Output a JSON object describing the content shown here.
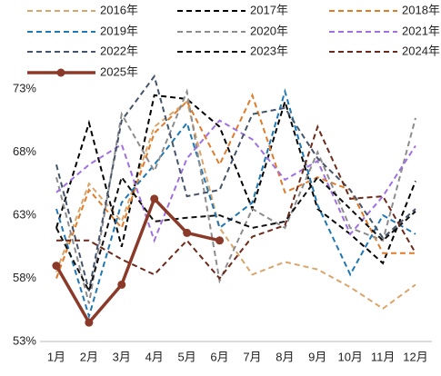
{
  "chart_data": {
    "type": "line",
    "categories": [
      "1月",
      "2月",
      "3月",
      "4月",
      "5月",
      "6月",
      "7月",
      "8月",
      "9月",
      "10月",
      "11月",
      "12月"
    ],
    "series": [
      {
        "name": "2016年",
        "color": "#d9a56b",
        "dashed": true,
        "values": [
          58.5,
          65.5,
          62.5,
          70,
          72,
          62,
          58.3,
          59.3,
          58.7,
          57.3,
          55.6,
          57.5
        ]
      },
      {
        "name": "2017年",
        "color": "#000000",
        "dashed": true,
        "values": [
          62,
          70.3,
          60.5,
          72.5,
          72.2,
          70,
          63.5,
          72,
          63.5,
          61.5,
          59.2,
          65.7
        ]
      },
      {
        "name": "2018年",
        "color": "#e07b2a",
        "dashed": true,
        "values": [
          58,
          65,
          62,
          69.5,
          72,
          67,
          72.5,
          64.8,
          66,
          65,
          60,
          60
        ]
      },
      {
        "name": "2019年",
        "color": "#1f77b4",
        "dashed": true,
        "values": [
          63.5,
          55,
          64,
          67,
          70.3,
          62,
          64,
          72.8,
          63.8,
          58.3,
          63,
          61.5
        ]
      },
      {
        "name": "2020年",
        "color": "#8c8c8c",
        "dashed": true,
        "values": [
          66,
          56,
          71,
          66.5,
          72.8,
          57.8,
          63.5,
          62,
          68,
          62,
          61,
          70.7
        ]
      },
      {
        "name": "2021年",
        "color": "#a070e0",
        "dashed": true,
        "values": [
          64.8,
          67,
          68.6,
          61,
          67.5,
          70.5,
          69,
          65.8,
          67.3,
          61.5,
          64.5,
          68.5
        ]
      },
      {
        "name": "2022年",
        "color": "#44546a",
        "dashed": true,
        "values": [
          67,
          57,
          70.5,
          74,
          64.5,
          65,
          71,
          71.5,
          67.5,
          65,
          61.2,
          63.5
        ]
      },
      {
        "name": "2023年",
        "color": "#111111",
        "dashed": true,
        "values": [
          62,
          57,
          66,
          62.5,
          62.8,
          63,
          62,
          62.5,
          66,
          63.5,
          61,
          63.3
        ]
      },
      {
        "name": "2024年",
        "color": "#6b2a1a",
        "dashed": true,
        "values": [
          61,
          61,
          59.5,
          58.3,
          61,
          58,
          61.3,
          62.2,
          70,
          64.3,
          64.5,
          60
        ]
      },
      {
        "name": "2025年",
        "color": "#8b3a2a",
        "dashed": false,
        "marker": true,
        "values": [
          59,
          54.5,
          57.5,
          64.3,
          61.6,
          61,
          null,
          null,
          null,
          null,
          null,
          null
        ]
      }
    ],
    "ylim": [
      53,
      74
    ],
    "yticks": [
      {
        "value": 53,
        "label": "53%"
      },
      {
        "value": 58,
        "label": "58%"
      },
      {
        "value": 63,
        "label": "63%"
      },
      {
        "value": 68,
        "label": "68%"
      },
      {
        "value": 73,
        "label": "73%"
      }
    ],
    "grid": false
  }
}
